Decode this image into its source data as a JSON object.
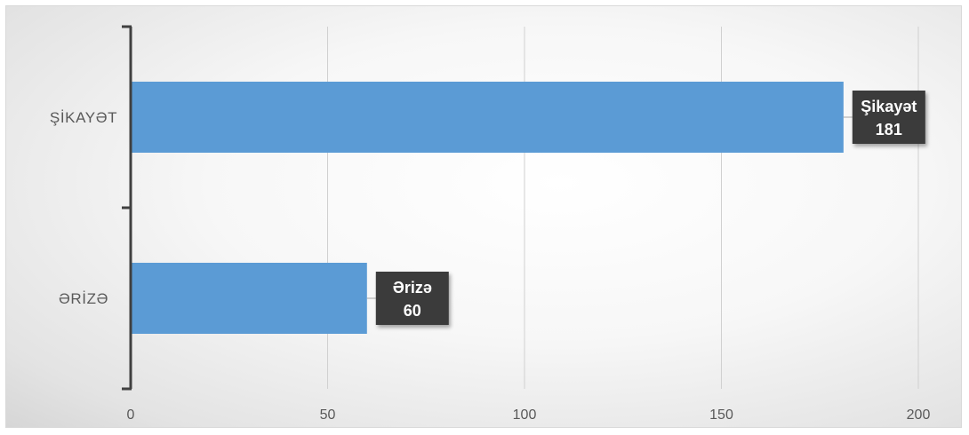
{
  "chart_data": {
    "type": "bar",
    "orientation": "horizontal",
    "categories": [
      "ŞİKAYƏT",
      "ƏRİZƏ"
    ],
    "values": [
      181,
      60
    ],
    "data_labels": [
      {
        "name": "Şikayət",
        "value": "181"
      },
      {
        "name": "Ərizə",
        "value": "60"
      }
    ],
    "xlim": [
      0,
      200
    ],
    "x_ticks": [
      0,
      50,
      100,
      150,
      200
    ],
    "grid": "vertical",
    "legend": "none",
    "colors": {
      "bar": "#5b9bd5",
      "label_bg": "#3a3a3a",
      "label_text": "#ffffff",
      "axis": "#404040",
      "grid": "#d0d0d0"
    }
  }
}
